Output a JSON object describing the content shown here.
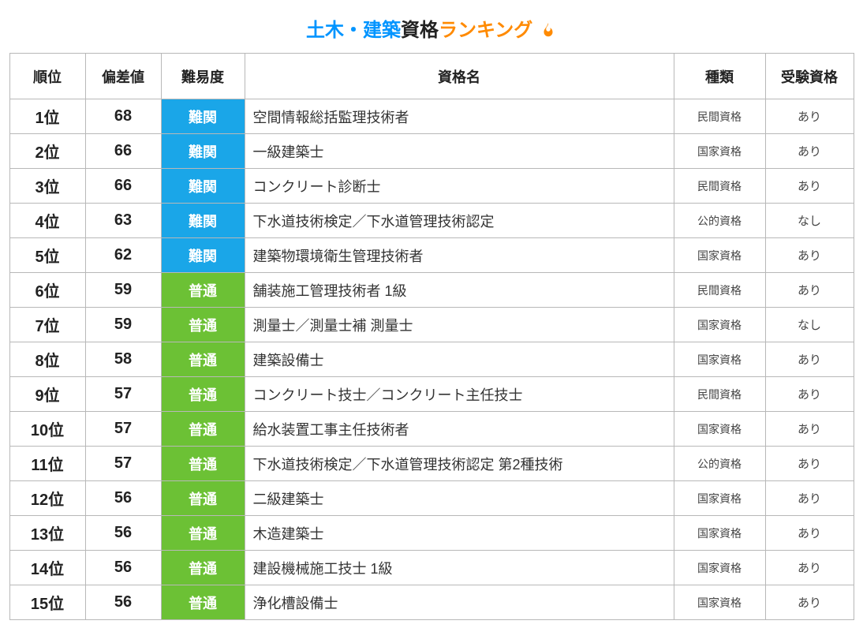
{
  "title": {
    "part1": "土木・建築",
    "part2": "資格",
    "part3": "ランキング"
  },
  "colors": {
    "title_part1": "#0094ff",
    "title_part2": "#222222",
    "title_part3": "#ff8a00",
    "flame": "#ff8a00",
    "border": "#b8b8b8",
    "difficulty_hard_bg": "#1aa6e8",
    "difficulty_normal_bg": "#6cc135",
    "difficulty_text": "#ffffff"
  },
  "headers": {
    "rank": "順位",
    "score": "偏差値",
    "difficulty": "難易度",
    "name": "資格名",
    "type": "種類",
    "requirement": "受験資格"
  },
  "difficulty_styles": {
    "難関": {
      "bg": "#1aa6e8"
    },
    "普通": {
      "bg": "#6cc135"
    }
  },
  "rows": [
    {
      "rank": "1位",
      "score": "68",
      "difficulty": "難関",
      "name": "空間情報総括監理技術者",
      "type": "民間資格",
      "req": "あり"
    },
    {
      "rank": "2位",
      "score": "66",
      "difficulty": "難関",
      "name": "一級建築士",
      "type": "国家資格",
      "req": "あり"
    },
    {
      "rank": "3位",
      "score": "66",
      "difficulty": "難関",
      "name": "コンクリート診断士",
      "type": "民間資格",
      "req": "あり"
    },
    {
      "rank": "4位",
      "score": "63",
      "difficulty": "難関",
      "name": "下水道技術検定／下水道管理技術認定",
      "type": "公的資格",
      "req": "なし"
    },
    {
      "rank": "5位",
      "score": "62",
      "difficulty": "難関",
      "name": "建築物環境衛生管理技術者",
      "type": "国家資格",
      "req": "あり"
    },
    {
      "rank": "6位",
      "score": "59",
      "difficulty": "普通",
      "name": "舗装施工管理技術者 1級",
      "type": "民間資格",
      "req": "あり"
    },
    {
      "rank": "7位",
      "score": "59",
      "difficulty": "普通",
      "name": "測量士／測量士補 測量士",
      "type": "国家資格",
      "req": "なし"
    },
    {
      "rank": "8位",
      "score": "58",
      "difficulty": "普通",
      "name": "建築設備士",
      "type": "国家資格",
      "req": "あり"
    },
    {
      "rank": "9位",
      "score": "57",
      "difficulty": "普通",
      "name": "コンクリート技士／コンクリート主任技士",
      "type": "民間資格",
      "req": "あり"
    },
    {
      "rank": "10位",
      "score": "57",
      "difficulty": "普通",
      "name": "給水装置工事主任技術者",
      "type": "国家資格",
      "req": "あり"
    },
    {
      "rank": "11位",
      "score": "57",
      "difficulty": "普通",
      "name": "下水道技術検定／下水道管理技術認定 第2種技術",
      "type": "公的資格",
      "req": "あり"
    },
    {
      "rank": "12位",
      "score": "56",
      "difficulty": "普通",
      "name": "二級建築士",
      "type": "国家資格",
      "req": "あり"
    },
    {
      "rank": "13位",
      "score": "56",
      "difficulty": "普通",
      "name": "木造建築士",
      "type": "国家資格",
      "req": "あり"
    },
    {
      "rank": "14位",
      "score": "56",
      "difficulty": "普通",
      "name": "建設機械施工技士 1級",
      "type": "国家資格",
      "req": "あり"
    },
    {
      "rank": "15位",
      "score": "56",
      "difficulty": "普通",
      "name": "浄化槽設備士",
      "type": "国家資格",
      "req": "あり"
    }
  ]
}
